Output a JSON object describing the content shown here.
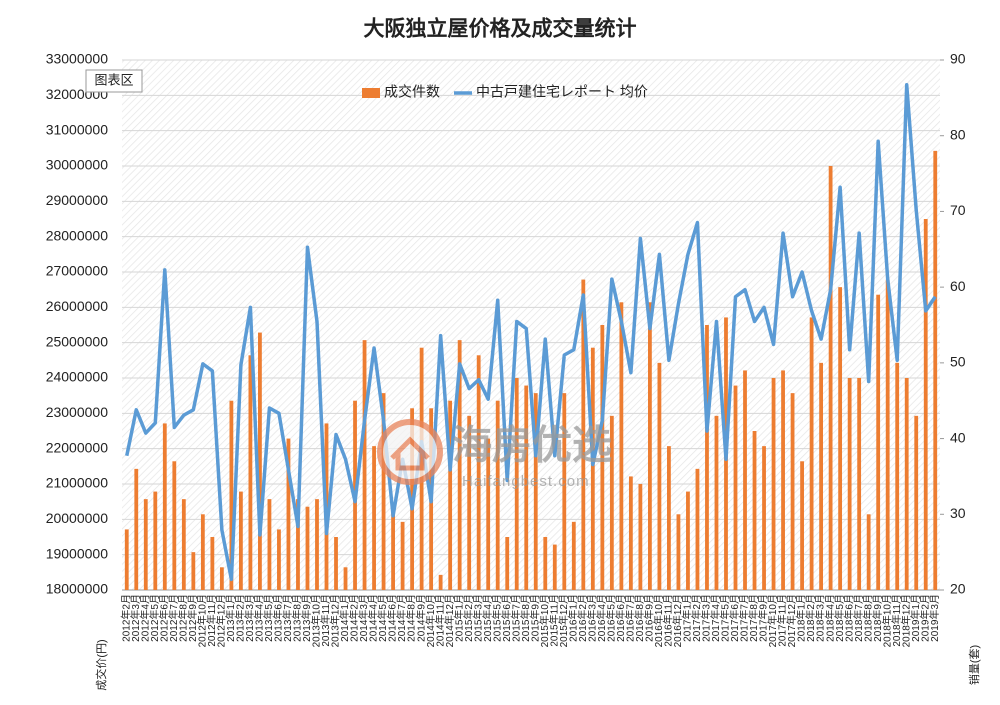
{
  "chart_data": {
    "type": "combo",
    "title": "大阪独立屋价格及成交量统计",
    "y_label": "成交价(円)",
    "y2_label": "销量(套)",
    "tooltip": "图表区",
    "watermark": "海房优选",
    "watermark_url": "Haifangbest.com",
    "categories": [
      "2012年2月",
      "2012年3月",
      "2012年4月",
      "2012年5月",
      "2012年6月",
      "2012年7月",
      "2012年8月",
      "2012年9月",
      "2012年10月",
      "2012年11月",
      "2012年12月",
      "2013年1月",
      "2013年2月",
      "2013年3月",
      "2013年4月",
      "2013年5月",
      "2013年6月",
      "2013年7月",
      "2013年8月",
      "2013年9月",
      "2013年10月",
      "2013年11月",
      "2013年12月",
      "2014年1月",
      "2014年2月",
      "2014年3月",
      "2014年4月",
      "2014年5月",
      "2014年6月",
      "2014年7月",
      "2014年8月",
      "2014年9月",
      "2014年10月",
      "2014年11月",
      "2014年12月",
      "2015年1月",
      "2015年2月",
      "2015年3月",
      "2015年4月",
      "2015年5月",
      "2015年6月",
      "2015年7月",
      "2015年8月",
      "2015年9月",
      "2015年10月",
      "2015年11月",
      "2015年12月",
      "2016年1月",
      "2016年2月",
      "2016年3月",
      "2016年4月",
      "2016年5月",
      "2016年6月",
      "2016年7月",
      "2016年8月",
      "2016年9月",
      "2016年10月",
      "2016年11月",
      "2016年12月",
      "2017年1月",
      "2017年2月",
      "2017年3月",
      "2017年4月",
      "2017年5月",
      "2017年6月",
      "2017年7月",
      "2017年8月",
      "2017年9月",
      "2017年10月",
      "2017年11月",
      "2017年12月",
      "2018年1月",
      "2018年2月",
      "2018年3月",
      "2018年4月",
      "2018年5月",
      "2018年6月",
      "2018年7月",
      "2018年8月",
      "2018年9月",
      "2018年10月",
      "2018年11月",
      "2018年12月",
      "2019年1月",
      "2019年2月",
      "2019年3月"
    ],
    "series": [
      {
        "name": "成交件数",
        "type": "bar",
        "axis": "y2",
        "color": "#ed7d31",
        "values": [
          28,
          36,
          32,
          33,
          42,
          37,
          32,
          25,
          30,
          27,
          23,
          45,
          33,
          51,
          54,
          32,
          28,
          40,
          32,
          31,
          32,
          42,
          27,
          23,
          45,
          53,
          39,
          46,
          31,
          29,
          44,
          52,
          44,
          22,
          45,
          53,
          43,
          51,
          40,
          45,
          27,
          48,
          47,
          46,
          27,
          26,
          46,
          29,
          61,
          52,
          55,
          43,
          58,
          35,
          34,
          58,
          50,
          39,
          30,
          33,
          36,
          55,
          43,
          56,
          47,
          49,
          41,
          39,
          48,
          49,
          46,
          37,
          56,
          50,
          76,
          60,
          48,
          48,
          30,
          59,
          61,
          50,
          48,
          43,
          69,
          78
        ]
      },
      {
        "name": "中古戸建住宅レポート 均价",
        "type": "line",
        "color": "#5b9bd5",
        "values": [
          21800000,
          23100000,
          22440000,
          22730000,
          27060000,
          22600000,
          22950000,
          23100000,
          24400000,
          24200000,
          19700000,
          18300000,
          24370000,
          26000000,
          19560000,
          23150000,
          23000000,
          21400000,
          19800000,
          27700000,
          25600000,
          19600000,
          22400000,
          21700000,
          20500000,
          22800000,
          24850000,
          22800000,
          20100000,
          21700000,
          20300000,
          22200000,
          20500000,
          25200000,
          21400000,
          24400000,
          23700000,
          23950000,
          23400000,
          26200000,
          21100000,
          25600000,
          25400000,
          21800000,
          25100000,
          21800000,
          24650000,
          24800000,
          26350000,
          21550000,
          22800000,
          26800000,
          25600000,
          24150000,
          27950000,
          25400000,
          27500000,
          24500000,
          26100000,
          27500000,
          28400000,
          22500000,
          25600000,
          21700000,
          26300000,
          26500000,
          25600000,
          26000000,
          24950000,
          28100000,
          26300000,
          27000000,
          25900000,
          25100000,
          26500000,
          29400000,
          24800000,
          28100000,
          23900000,
          30700000,
          26800000,
          24500000,
          32300000,
          28750000,
          25900000,
          26300000
        ]
      }
    ],
    "ylim": [
      18000000,
      33000000
    ],
    "yticks": [
      18000000,
      19000000,
      20000000,
      21000000,
      22000000,
      23000000,
      24000000,
      25000000,
      26000000,
      27000000,
      28000000,
      29000000,
      30000000,
      31000000,
      32000000,
      33000000
    ],
    "y2lim": [
      20,
      90
    ],
    "y2ticks": [
      20,
      30,
      40,
      50,
      60,
      70,
      80,
      90
    ],
    "grid": true,
    "legend": "top"
  }
}
